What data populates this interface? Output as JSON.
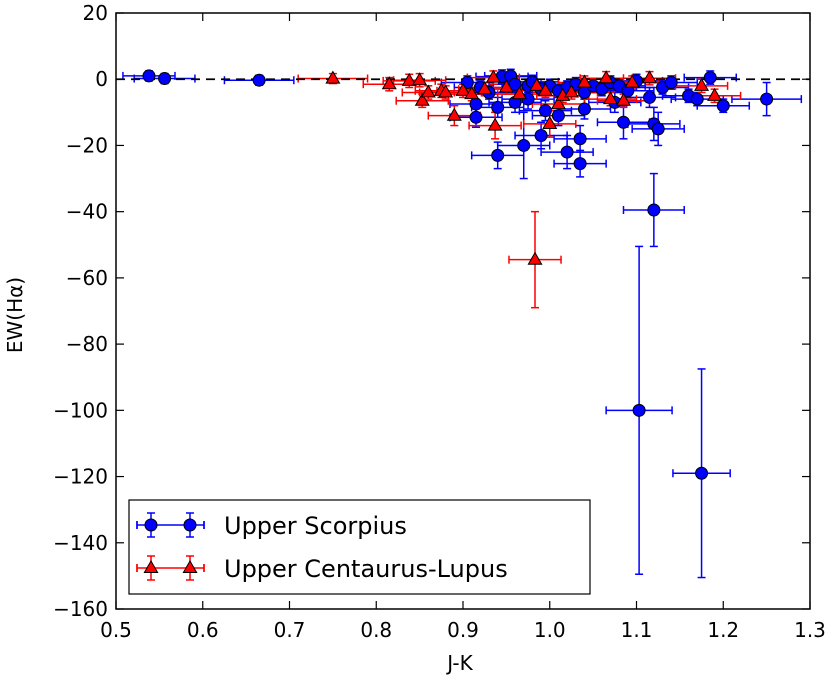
{
  "chart_data": {
    "type": "scatter",
    "xlabel": "J-K",
    "ylabel": "EW(Hα)",
    "xlim": [
      0.5,
      1.3
    ],
    "ylim": [
      -160,
      20
    ],
    "xticks": [
      "0.5",
      "0.6",
      "0.7",
      "0.8",
      "0.9",
      "1.0",
      "1.1",
      "1.2",
      "1.3"
    ],
    "yticks": [
      "20",
      "0",
      "−20",
      "−40",
      "−60",
      "−80",
      "−100",
      "−120",
      "−140",
      "−160"
    ],
    "reference_line": {
      "y": 0,
      "style": "dashed",
      "color": "#000000"
    },
    "legend": {
      "position": "lower-left"
    },
    "series": [
      {
        "name": "Upper Scorpius",
        "marker": "circle",
        "color": "#0000ff",
        "points": [
          {
            "x": 0.538,
            "y": 1.0,
            "xerr": 0.03,
            "yerr": 1.5
          },
          {
            "x": 0.556,
            "y": 0.2,
            "xerr": 0.035,
            "yerr": 1.5
          },
          {
            "x": 0.665,
            "y": -0.3,
            "xerr": 0.04,
            "yerr": 1.5
          },
          {
            "x": 0.905,
            "y": -1.0,
            "xerr": 0.03,
            "yerr": 2
          },
          {
            "x": 0.92,
            "y": -2.5,
            "xerr": 0.03,
            "yerr": 2
          },
          {
            "x": 0.93,
            "y": -4.0,
            "xerr": 0.03,
            "yerr": 2
          },
          {
            "x": 0.945,
            "y": 0.8,
            "xerr": 0.03,
            "yerr": 2
          },
          {
            "x": 0.955,
            "y": 1.0,
            "xerr": 0.03,
            "yerr": 2
          },
          {
            "x": 0.96,
            "y": -1.5,
            "xerr": 0.03,
            "yerr": 2
          },
          {
            "x": 0.975,
            "y": -2.0,
            "xerr": 0.03,
            "yerr": 2
          },
          {
            "x": 0.98,
            "y": -0.8,
            "xerr": 0.03,
            "yerr": 2
          },
          {
            "x": 0.99,
            "y": -3.0,
            "xerr": 0.03,
            "yerr": 2
          },
          {
            "x": 1.0,
            "y": -2.0,
            "xerr": 0.03,
            "yerr": 2
          },
          {
            "x": 1.01,
            "y": -3.5,
            "xerr": 0.03,
            "yerr": 2
          },
          {
            "x": 1.02,
            "y": -2.5,
            "xerr": 0.03,
            "yerr": 2
          },
          {
            "x": 1.03,
            "y": -1.5,
            "xerr": 0.03,
            "yerr": 2
          },
          {
            "x": 1.04,
            "y": -4.0,
            "xerr": 0.03,
            "yerr": 2
          },
          {
            "x": 1.05,
            "y": -2.0,
            "xerr": 0.03,
            "yerr": 2
          },
          {
            "x": 1.06,
            "y": -3.0,
            "xerr": 0.03,
            "yerr": 2
          },
          {
            "x": 1.07,
            "y": -1.0,
            "xerr": 0.03,
            "yerr": 2
          },
          {
            "x": 1.08,
            "y": -2.0,
            "xerr": 0.03,
            "yerr": 2
          },
          {
            "x": 1.09,
            "y": -3.5,
            "xerr": 0.03,
            "yerr": 2
          },
          {
            "x": 1.1,
            "y": -0.5,
            "xerr": 0.03,
            "yerr": 2
          },
          {
            "x": 1.13,
            "y": -2.5,
            "xerr": 0.03,
            "yerr": 2
          },
          {
            "x": 1.14,
            "y": -1.0,
            "xerr": 0.03,
            "yerr": 2
          },
          {
            "x": 1.16,
            "y": -5.0,
            "xerr": 0.03,
            "yerr": 2
          },
          {
            "x": 1.17,
            "y": -6.0,
            "xerr": 0.03,
            "yerr": 2
          },
          {
            "x": 1.185,
            "y": 0.5,
            "xerr": 0.03,
            "yerr": 2
          },
          {
            "x": 1.2,
            "y": -8.0,
            "xerr": 0.03,
            "yerr": 2
          },
          {
            "x": 1.25,
            "y": -6.0,
            "xerr": 0.04,
            "yerr": 5
          },
          {
            "x": 0.915,
            "y": -7.5,
            "xerr": 0.03,
            "yerr": 3
          },
          {
            "x": 0.94,
            "y": -8.5,
            "xerr": 0.03,
            "yerr": 3
          },
          {
            "x": 0.96,
            "y": -7.0,
            "xerr": 0.03,
            "yerr": 3
          },
          {
            "x": 0.975,
            "y": -6.0,
            "xerr": 0.03,
            "yerr": 3
          },
          {
            "x": 0.995,
            "y": -9.5,
            "xerr": 0.03,
            "yerr": 3
          },
          {
            "x": 1.01,
            "y": -11.0,
            "xerr": 0.03,
            "yerr": 3
          },
          {
            "x": 1.04,
            "y": -9.0,
            "xerr": 0.03,
            "yerr": 3
          },
          {
            "x": 1.075,
            "y": -7.0,
            "xerr": 0.03,
            "yerr": 3
          },
          {
            "x": 1.115,
            "y": -5.5,
            "xerr": 0.03,
            "yerr": 3
          },
          {
            "x": 0.915,
            "y": -11.5,
            "xerr": 0.03,
            "yerr": 3
          },
          {
            "x": 0.99,
            "y": -17.0,
            "xerr": 0.03,
            "yerr": 4
          },
          {
            "x": 1.035,
            "y": -18.0,
            "xerr": 0.03,
            "yerr": 4
          },
          {
            "x": 1.085,
            "y": -13.0,
            "xerr": 0.03,
            "yerr": 5
          },
          {
            "x": 1.12,
            "y": -13.5,
            "xerr": 0.03,
            "yerr": 5
          },
          {
            "x": 1.125,
            "y": -15.0,
            "xerr": 0.03,
            "yerr": 5
          },
          {
            "x": 0.94,
            "y": -23.0,
            "xerr": 0.03,
            "yerr": 4
          },
          {
            "x": 0.97,
            "y": -20.0,
            "xerr": 0.03,
            "yerr": 10
          },
          {
            "x": 1.02,
            "y": -22.0,
            "xerr": 0.03,
            "yerr": 5
          },
          {
            "x": 1.035,
            "y": -25.5,
            "xerr": 0.03,
            "yerr": 4
          },
          {
            "x": 1.12,
            "y": -39.5,
            "xerr": 0.035,
            "yerr": 11
          },
          {
            "x": 1.103,
            "y": -100.0,
            "xerr": 0.038,
            "yerr": 49.5
          },
          {
            "x": 1.175,
            "y": -119.0,
            "xerr": 0.033,
            "yerr": 31.5
          }
        ]
      },
      {
        "name": "Upper Centaurus-Lupus",
        "marker": "triangle",
        "color": "#ff0000",
        "points": [
          {
            "x": 0.75,
            "y": 0.2,
            "xerr": 0.04,
            "yerr": 1.5
          },
          {
            "x": 0.815,
            "y": -1.5,
            "xerr": 0.03,
            "yerr": 2
          },
          {
            "x": 0.838,
            "y": -0.5,
            "xerr": 0.03,
            "yerr": 2
          },
          {
            "x": 0.85,
            "y": -0.3,
            "xerr": 0.03,
            "yerr": 2
          },
          {
            "x": 0.853,
            "y": -6.5,
            "xerr": 0.03,
            "yerr": 2
          },
          {
            "x": 0.86,
            "y": -4.0,
            "xerr": 0.03,
            "yerr": 2
          },
          {
            "x": 0.875,
            "y": -3.5,
            "xerr": 0.03,
            "yerr": 2
          },
          {
            "x": 0.88,
            "y": -4.0,
            "xerr": 0.03,
            "yerr": 2
          },
          {
            "x": 0.89,
            "y": -11.0,
            "xerr": 0.03,
            "yerr": 3
          },
          {
            "x": 0.9,
            "y": -3.5,
            "xerr": 0.03,
            "yerr": 2
          },
          {
            "x": 0.91,
            "y": -4.5,
            "xerr": 0.03,
            "yerr": 2
          },
          {
            "x": 0.925,
            "y": -3.0,
            "xerr": 0.03,
            "yerr": 2
          },
          {
            "x": 0.935,
            "y": 0.5,
            "xerr": 0.03,
            "yerr": 2
          },
          {
            "x": 0.937,
            "y": -14.0,
            "xerr": 0.03,
            "yerr": 4
          },
          {
            "x": 0.95,
            "y": -2.5,
            "xerr": 0.03,
            "yerr": 2
          },
          {
            "x": 0.965,
            "y": -4.5,
            "xerr": 0.03,
            "yerr": 2
          },
          {
            "x": 0.985,
            "y": -2.0,
            "xerr": 0.03,
            "yerr": 2
          },
          {
            "x": 0.995,
            "y": -3.5,
            "xerr": 0.03,
            "yerr": 2
          },
          {
            "x": 1.0,
            "y": -13.5,
            "xerr": 0.03,
            "yerr": 4
          },
          {
            "x": 1.01,
            "y": -7.5,
            "xerr": 0.03,
            "yerr": 3
          },
          {
            "x": 1.015,
            "y": -5.0,
            "xerr": 0.03,
            "yerr": 2
          },
          {
            "x": 1.025,
            "y": -4.0,
            "xerr": 0.03,
            "yerr": 2
          },
          {
            "x": 1.04,
            "y": -1.0,
            "xerr": 0.03,
            "yerr": 2
          },
          {
            "x": 1.065,
            "y": 0.3,
            "xerr": 0.03,
            "yerr": 2
          },
          {
            "x": 1.07,
            "y": -6.0,
            "xerr": 0.03,
            "yerr": 2
          },
          {
            "x": 1.085,
            "y": -6.5,
            "xerr": 0.03,
            "yerr": 2
          },
          {
            "x": 1.095,
            "y": -1.0,
            "xerr": 0.03,
            "yerr": 2
          },
          {
            "x": 1.115,
            "y": 0.3,
            "xerr": 0.03,
            "yerr": 2
          },
          {
            "x": 1.175,
            "y": -2.0,
            "xerr": 0.03,
            "yerr": 2
          },
          {
            "x": 1.19,
            "y": -5.0,
            "xerr": 0.03,
            "yerr": 2
          },
          {
            "x": 0.983,
            "y": -54.5,
            "xerr": 0.03,
            "yerr": 14.5
          }
        ]
      }
    ]
  }
}
